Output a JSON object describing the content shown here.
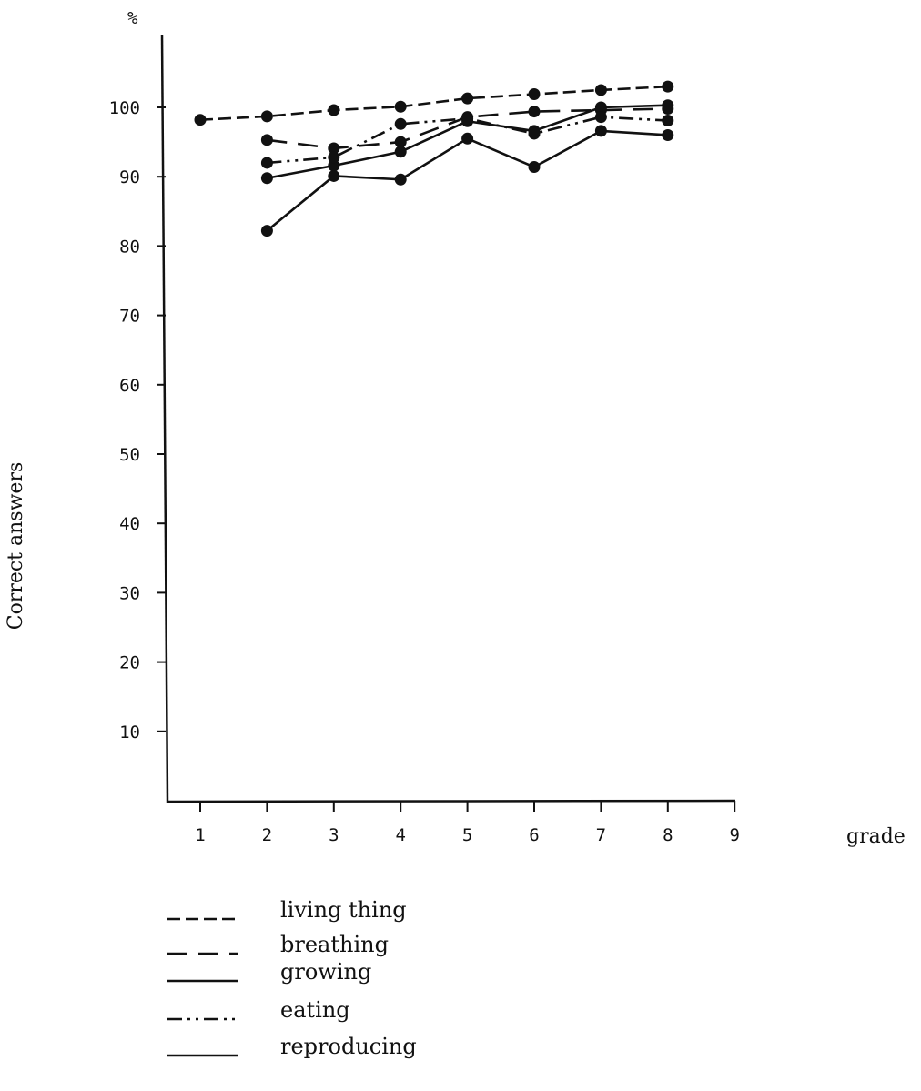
{
  "chart_data": {
    "type": "line",
    "title": "",
    "ylabel": "Correct answers",
    "yunit": "%",
    "xlabel": "grade",
    "xlim": [
      0.5,
      9
    ],
    "ylim": [
      0,
      105
    ],
    "grid": false,
    "x_ticks": [
      "1",
      "2",
      "3",
      "4",
      "5",
      "6",
      "7",
      "8",
      "9"
    ],
    "y_ticks": [
      "10",
      "20",
      "30",
      "40",
      "50",
      "60",
      "70",
      "80",
      "90",
      "100"
    ],
    "legend_position": "bottom",
    "series": [
      {
        "name": "living thing",
        "style": "short-dash",
        "x": [
          1,
          2,
          3,
          4,
          5,
          6,
          7,
          8
        ],
        "y": [
          98.2,
          98.7,
          99.6,
          100.1,
          101.3,
          101.9,
          102.5,
          103.0
        ]
      },
      {
        "name": "breathing",
        "style": "long-dash",
        "x": [
          2,
          3,
          4,
          5,
          6,
          7,
          8
        ],
        "y": [
          95.3,
          94.1,
          95.0,
          98.6,
          99.4,
          99.6,
          99.8
        ]
      },
      {
        "name": "growing",
        "style": "solid",
        "x": [
          2,
          3,
          4,
          5,
          6,
          7,
          8
        ],
        "y": [
          89.8,
          91.6,
          93.6,
          98.0,
          96.6,
          100.0,
          100.3
        ]
      },
      {
        "name": "eating",
        "style": "dash-dot-dot",
        "x": [
          2,
          3,
          4,
          5,
          6,
          7,
          8
        ],
        "y": [
          92.0,
          92.8,
          97.6,
          98.4,
          96.2,
          98.6,
          98.1
        ]
      },
      {
        "name": "reproducing",
        "style": "solid",
        "x": [
          2,
          3,
          4,
          5,
          6,
          7,
          8
        ],
        "y": [
          82.2,
          90.1,
          89.6,
          95.5,
          91.4,
          96.6,
          96.0
        ]
      }
    ]
  }
}
